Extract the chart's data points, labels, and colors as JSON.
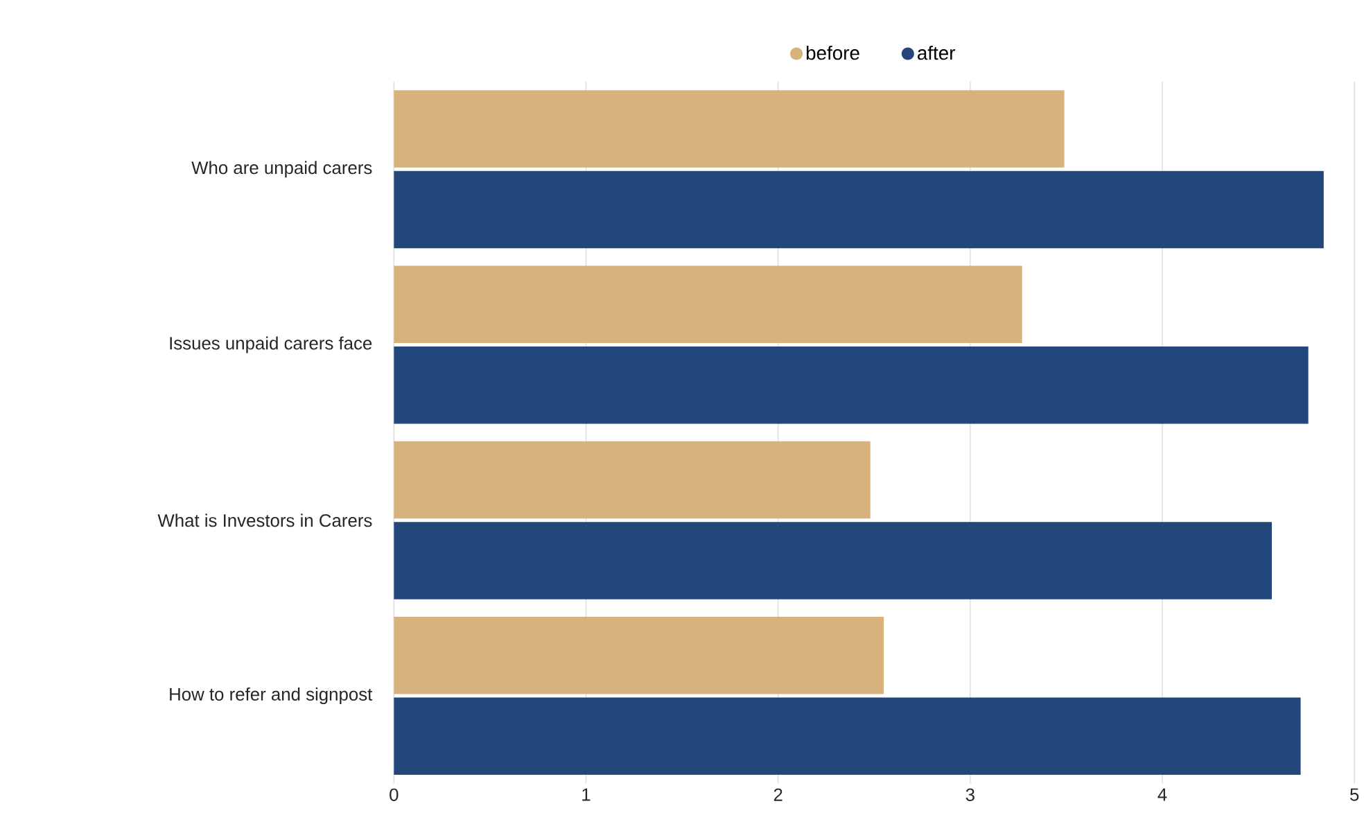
{
  "chart_data": {
    "type": "bar",
    "orientation": "horizontal",
    "categories": [
      "Who are unpaid carers",
      "Issues unpaid carers face",
      "What is Investors in Carers",
      "How to refer and signpost"
    ],
    "series": [
      {
        "name": "before",
        "color": "#d8b27d",
        "values": [
          3.49,
          3.27,
          2.48,
          2.55
        ]
      },
      {
        "name": "after",
        "color": "#24477b",
        "values": [
          4.84,
          4.76,
          4.57,
          4.72
        ]
      }
    ],
    "xlim": [
      0,
      5
    ],
    "xticks": [
      0,
      1,
      2,
      3,
      4,
      5
    ],
    "grid": "x",
    "legend": "top"
  }
}
